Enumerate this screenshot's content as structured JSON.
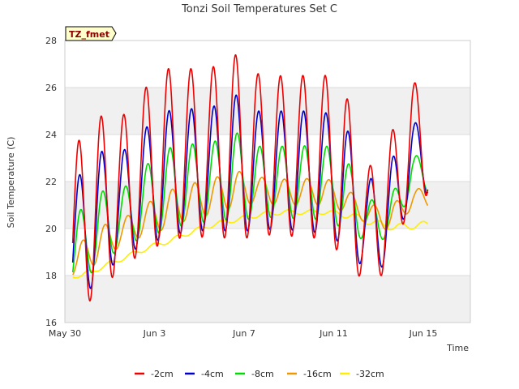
{
  "chart_data": {
    "type": "line",
    "title": "Tonzi Soil Temperatures Set C",
    "xlabel": "Time",
    "ylabel": "Soil Temperature (C)",
    "badge": "TZ_fmet",
    "xlim": [
      0,
      18.1
    ],
    "ylim": [
      16,
      28
    ],
    "x_tick_positions": [
      0,
      4,
      8,
      12,
      16
    ],
    "x_tick_labels": [
      "May 30",
      "Jun 3",
      "Jun 7",
      "Jun 11",
      "Jun 15"
    ],
    "y_ticks": [
      16,
      18,
      20,
      22,
      24,
      26,
      28
    ],
    "grid": true,
    "legend_position": "bottom-center",
    "series": [
      {
        "name": "-2cm",
        "color": "#ee0000",
        "daily_max": [
          23.6,
          24.8,
          24.7,
          25.9,
          26.8,
          26.8,
          26.8,
          27.5,
          26.6,
          26.5,
          26.5,
          26.6,
          25.9,
          22.5,
          23.9,
          26.2
        ],
        "daily_min": [
          16.3,
          17.3,
          18.3,
          19.0,
          19.4,
          19.7,
          19.6,
          19.6,
          19.6,
          19.8,
          19.6,
          19.6,
          18.8,
          17.5,
          18.3,
          21.4
        ]
      },
      {
        "name": "-4cm",
        "color": "#0000cc",
        "daily_max": [
          22.1,
          23.3,
          23.2,
          24.2,
          25.0,
          25.1,
          25.1,
          25.8,
          25.0,
          25.0,
          25.0,
          25.0,
          24.5,
          22.0,
          22.8,
          24.5
        ],
        "daily_min": [
          16.8,
          17.8,
          18.8,
          19.3,
          19.6,
          19.9,
          19.9,
          19.9,
          19.9,
          20.0,
          19.9,
          19.8,
          19.3,
          18.1,
          18.5,
          21.5
        ]
      },
      {
        "name": "-8cm",
        "color": "#00dd00",
        "daily_max": [
          20.6,
          21.6,
          21.6,
          22.6,
          23.4,
          23.6,
          23.6,
          24.2,
          23.5,
          23.5,
          23.5,
          23.6,
          23.1,
          21.2,
          21.3,
          23.1
        ],
        "daily_min": [
          17.5,
          18.4,
          19.2,
          19.6,
          19.9,
          20.2,
          20.3,
          20.4,
          20.4,
          20.5,
          20.4,
          20.4,
          20.0,
          19.4,
          19.6,
          21.6
        ]
      },
      {
        "name": "-16cm",
        "color": "#ee9900",
        "daily_max": [
          19.3,
          20.1,
          20.4,
          21.0,
          21.6,
          21.9,
          22.1,
          22.5,
          22.2,
          22.1,
          22.1,
          22.2,
          21.7,
          21.0,
          21.0,
          21.7
        ],
        "daily_min": [
          18.0,
          18.6,
          19.3,
          19.7,
          20.0,
          20.4,
          20.6,
          20.9,
          21.1,
          21.0,
          21.0,
          21.0,
          20.7,
          20.2,
          19.9,
          20.9
        ]
      },
      {
        "name": "-32cm",
        "color": "#ffee00",
        "daily_max": [
          18.1,
          18.5,
          18.9,
          19.3,
          19.6,
          20.0,
          20.3,
          20.5,
          20.7,
          20.8,
          20.8,
          20.8,
          20.7,
          20.4,
          20.2,
          20.3
        ],
        "daily_min": [
          17.9,
          18.3,
          18.7,
          19.1,
          19.4,
          19.8,
          20.1,
          20.3,
          20.5,
          20.6,
          20.6,
          20.6,
          20.4,
          20.1,
          19.9,
          20.0
        ]
      }
    ]
  }
}
